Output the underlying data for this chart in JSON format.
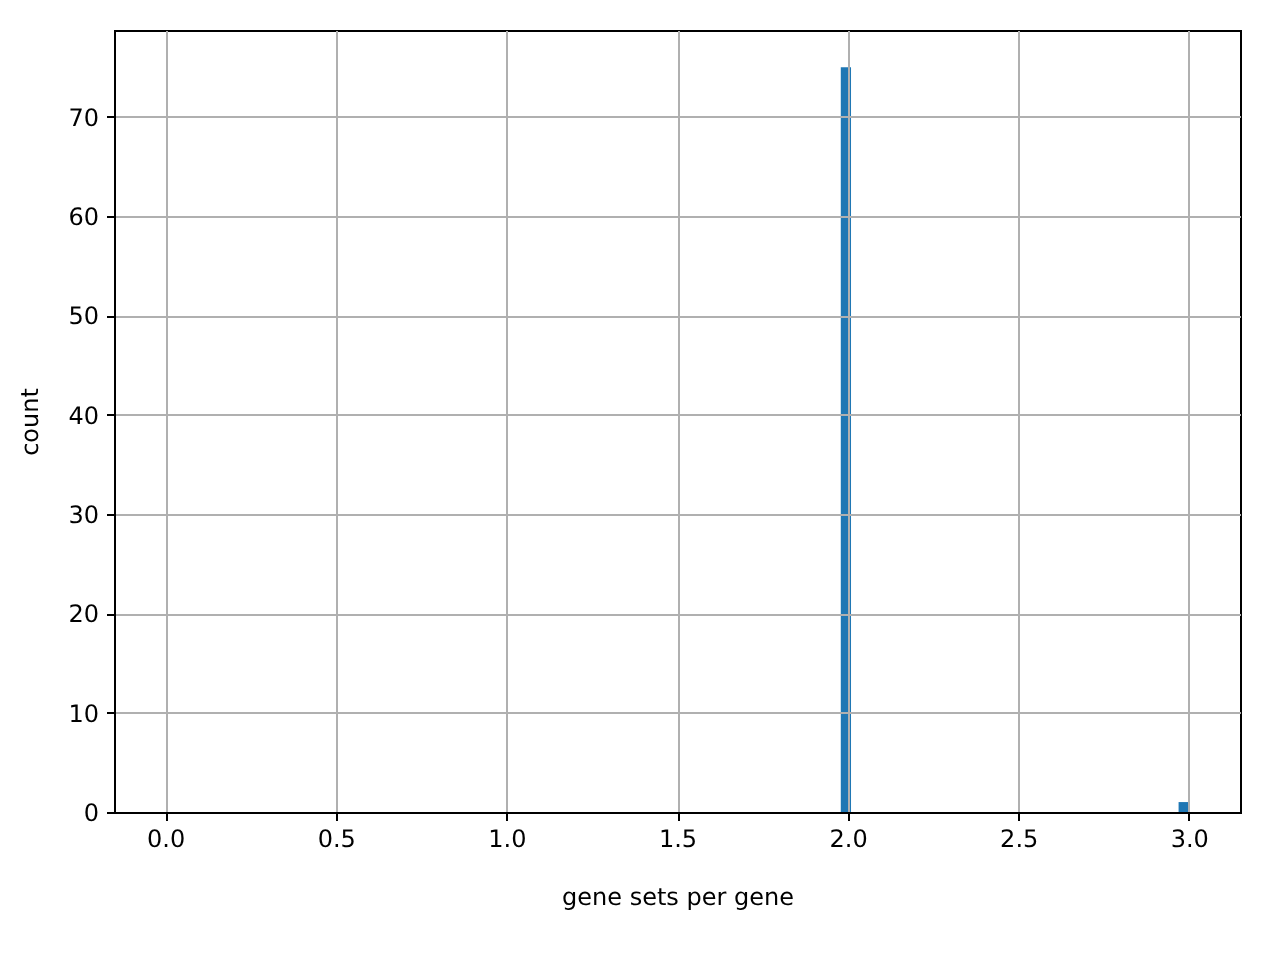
{
  "chart_data": {
    "type": "histogram",
    "xlabel": "gene sets per gene",
    "ylabel": "count",
    "bins": [
      0,
      0.03,
      0.06,
      0.09,
      0.12,
      0.15,
      0.18,
      0.21,
      0.24,
      0.27,
      0.3,
      0.33,
      0.36,
      0.39,
      0.42,
      0.45,
      0.48,
      0.51,
      0.54,
      0.57,
      0.6,
      0.63,
      0.66,
      0.69,
      0.72,
      0.75,
      0.78,
      0.81,
      0.84,
      0.87,
      0.9,
      0.93,
      0.96,
      0.99,
      1.02,
      1.05,
      1.08,
      1.11,
      1.14,
      1.17,
      1.2,
      1.23,
      1.26,
      1.29,
      1.32,
      1.35,
      1.38,
      1.41,
      1.44,
      1.47,
      1.5,
      1.53,
      1.56,
      1.59,
      1.62,
      1.65,
      1.68,
      1.71,
      1.74,
      1.77,
      1.8,
      1.83,
      1.86,
      1.89,
      1.92,
      1.95,
      1.98,
      2.01,
      2.04,
      2.07,
      2.1,
      2.13,
      2.16,
      2.19,
      2.22,
      2.25,
      2.28,
      2.31,
      2.34,
      2.37,
      2.4,
      2.43,
      2.46,
      2.49,
      2.52,
      2.55,
      2.58,
      2.61,
      2.64,
      2.67,
      2.7,
      2.73,
      2.76,
      2.79,
      2.82,
      2.85,
      2.88,
      2.91,
      2.94,
      2.97,
      3.0
    ],
    "values": [
      0,
      0,
      0,
      0,
      0,
      0,
      0,
      0,
      0,
      0,
      0,
      0,
      0,
      0,
      0,
      0,
      0,
      0,
      0,
      0,
      0,
      0,
      0,
      0,
      0,
      0,
      0,
      0,
      0,
      0,
      0,
      0,
      0,
      0,
      0,
      0,
      0,
      0,
      0,
      0,
      0,
      0,
      0,
      0,
      0,
      0,
      0,
      0,
      0,
      0,
      0,
      0,
      0,
      0,
      0,
      0,
      0,
      0,
      0,
      0,
      0,
      0,
      0,
      0,
      0,
      0,
      75,
      0,
      0,
      0,
      0,
      0,
      0,
      0,
      0,
      0,
      0,
      0,
      0,
      0,
      0,
      0,
      0,
      0,
      0,
      0,
      0,
      0,
      0,
      0,
      0,
      0,
      0,
      0,
      0,
      0,
      0,
      0,
      0,
      1
    ],
    "color": "#1f77b4",
    "xlim": [
      -0.15,
      3.15
    ],
    "ylim": [
      0,
      78.75
    ],
    "xticks": [
      {
        "value": 0,
        "label": "0.0"
      },
      0.5,
      {
        "value": 1,
        "label": "1.0"
      },
      1.5,
      {
        "value": 2,
        "label": "2.0"
      },
      2.5,
      {
        "value": 3,
        "label": "3.0"
      }
    ],
    "yticks": [
      0,
      10,
      20,
      30,
      40,
      50,
      60,
      70
    ],
    "grid": true
  }
}
